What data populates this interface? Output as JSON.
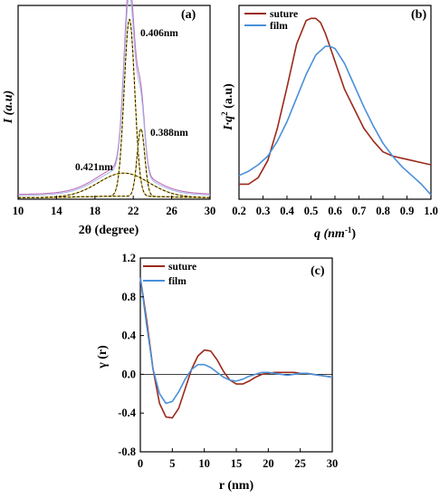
{
  "colors": {
    "suture": "#9b2a1b",
    "film": "#4a90d9",
    "fit_yellow": "#e8c33a",
    "fit_dark": "#1a1a00",
    "pink": "#c070b8"
  },
  "chart_data": [
    {
      "panel_label": "(a)",
      "type": "line",
      "xlabel": "2θ (degree)",
      "ylabel": "I (a.u)",
      "xlim": [
        10,
        30
      ],
      "xticks": [
        "10",
        "14",
        "18",
        "22",
        "26",
        "30"
      ],
      "grid": false,
      "annotations": [
        {
          "text": "0.406nm",
          "x": 22.9,
          "y": 0.9
        },
        {
          "text": "0.388nm",
          "x": 24.0,
          "y": 0.35
        },
        {
          "text": "0.421nm",
          "x": 16.5,
          "y": 0.17
        }
      ],
      "peaks": [
        {
          "label": "0.406nm",
          "center": 21.6,
          "height": 0.84,
          "width": 0.55
        },
        {
          "label": "0.388nm",
          "center": 22.8,
          "height": 0.32,
          "width": 0.4
        },
        {
          "label": "0.421nm",
          "center": 21.0,
          "height": 0.11,
          "width": 2.6
        }
      ]
    },
    {
      "panel_label": "(b)",
      "type": "line",
      "xlabel": "q (nm",
      "xlabel_sup": "-1",
      "xlabel_end": ")",
      "ylabel": "I·q",
      "ylabel_sup": "2",
      "ylabel_end": " (a.u)",
      "xlim": [
        0.2,
        1.0
      ],
      "xticks": [
        "0.2",
        "0.3",
        "0.4",
        "0.5",
        "0.6",
        "0.7",
        "0.8",
        "0.9",
        "1.0"
      ],
      "grid": false,
      "legend": "top-left",
      "series": [
        {
          "name": "suture",
          "x": [
            0.2,
            0.24,
            0.28,
            0.32,
            0.36,
            0.4,
            0.44,
            0.48,
            0.5,
            0.52,
            0.54,
            0.56,
            0.6,
            0.64,
            0.68,
            0.72,
            0.76,
            0.8,
            0.84,
            0.88,
            0.92,
            0.96,
            1.0
          ],
          "y": [
            0.07,
            0.07,
            0.1,
            0.18,
            0.33,
            0.52,
            0.72,
            0.83,
            0.84,
            0.84,
            0.82,
            0.77,
            0.64,
            0.51,
            0.42,
            0.33,
            0.27,
            0.22,
            0.2,
            0.19,
            0.18,
            0.17,
            0.16
          ]
        },
        {
          "name": "film",
          "x": [
            0.2,
            0.24,
            0.28,
            0.32,
            0.36,
            0.4,
            0.44,
            0.48,
            0.52,
            0.56,
            0.58,
            0.6,
            0.64,
            0.68,
            0.72,
            0.76,
            0.8,
            0.84,
            0.88,
            0.92,
            0.96,
            1.0
          ],
          "y": [
            0.11,
            0.13,
            0.16,
            0.2,
            0.27,
            0.36,
            0.47,
            0.58,
            0.67,
            0.71,
            0.71,
            0.7,
            0.63,
            0.53,
            0.43,
            0.34,
            0.26,
            0.2,
            0.15,
            0.11,
            0.07,
            0.02
          ]
        }
      ]
    },
    {
      "panel_label": "(c)",
      "type": "line",
      "xlabel": "r (nm)",
      "ylabel": "γ (r)",
      "xlim": [
        0,
        30
      ],
      "ylim": [
        -0.8,
        1.2
      ],
      "xticks": [
        "0",
        "5",
        "10",
        "15",
        "20",
        "25",
        "30"
      ],
      "yticks": [
        "-0.8",
        "-0.4",
        "0.0",
        "0.4",
        "0.8",
        "1.2"
      ],
      "grid": false,
      "legend": "top-left",
      "series": [
        {
          "name": "suture",
          "x": [
            0,
            1,
            2,
            3,
            4,
            5,
            6,
            7,
            8,
            9,
            10,
            11,
            12,
            13,
            14,
            15,
            16,
            17,
            18,
            19,
            20,
            21,
            22,
            23,
            24,
            25,
            26,
            27,
            28,
            29,
            30
          ],
          "y": [
            1.0,
            0.55,
            0.05,
            -0.3,
            -0.44,
            -0.45,
            -0.35,
            -0.15,
            0.05,
            0.19,
            0.25,
            0.24,
            0.15,
            0.03,
            -0.06,
            -0.1,
            -0.1,
            -0.07,
            -0.03,
            0.0,
            0.01,
            0.02,
            0.02,
            0.02,
            0.02,
            0.01,
            0.01,
            0.0,
            -0.01,
            -0.02,
            -0.03
          ]
        },
        {
          "name": "film",
          "x": [
            0,
            1,
            2,
            3,
            4,
            5,
            6,
            7,
            8,
            9,
            10,
            11,
            12,
            13,
            14,
            15,
            16,
            17,
            18,
            19,
            20,
            21,
            22,
            23,
            24,
            25,
            26,
            27,
            28,
            29,
            30
          ],
          "y": [
            1.0,
            0.5,
            0.05,
            -0.2,
            -0.3,
            -0.28,
            -0.18,
            -0.05,
            0.05,
            0.1,
            0.1,
            0.07,
            0.02,
            -0.03,
            -0.06,
            -0.07,
            -0.05,
            -0.02,
            0.0,
            0.02,
            0.02,
            0.01,
            0.0,
            -0.01,
            0.0,
            0.01,
            0.01,
            0.0,
            -0.01,
            -0.02,
            -0.03
          ]
        }
      ]
    }
  ]
}
